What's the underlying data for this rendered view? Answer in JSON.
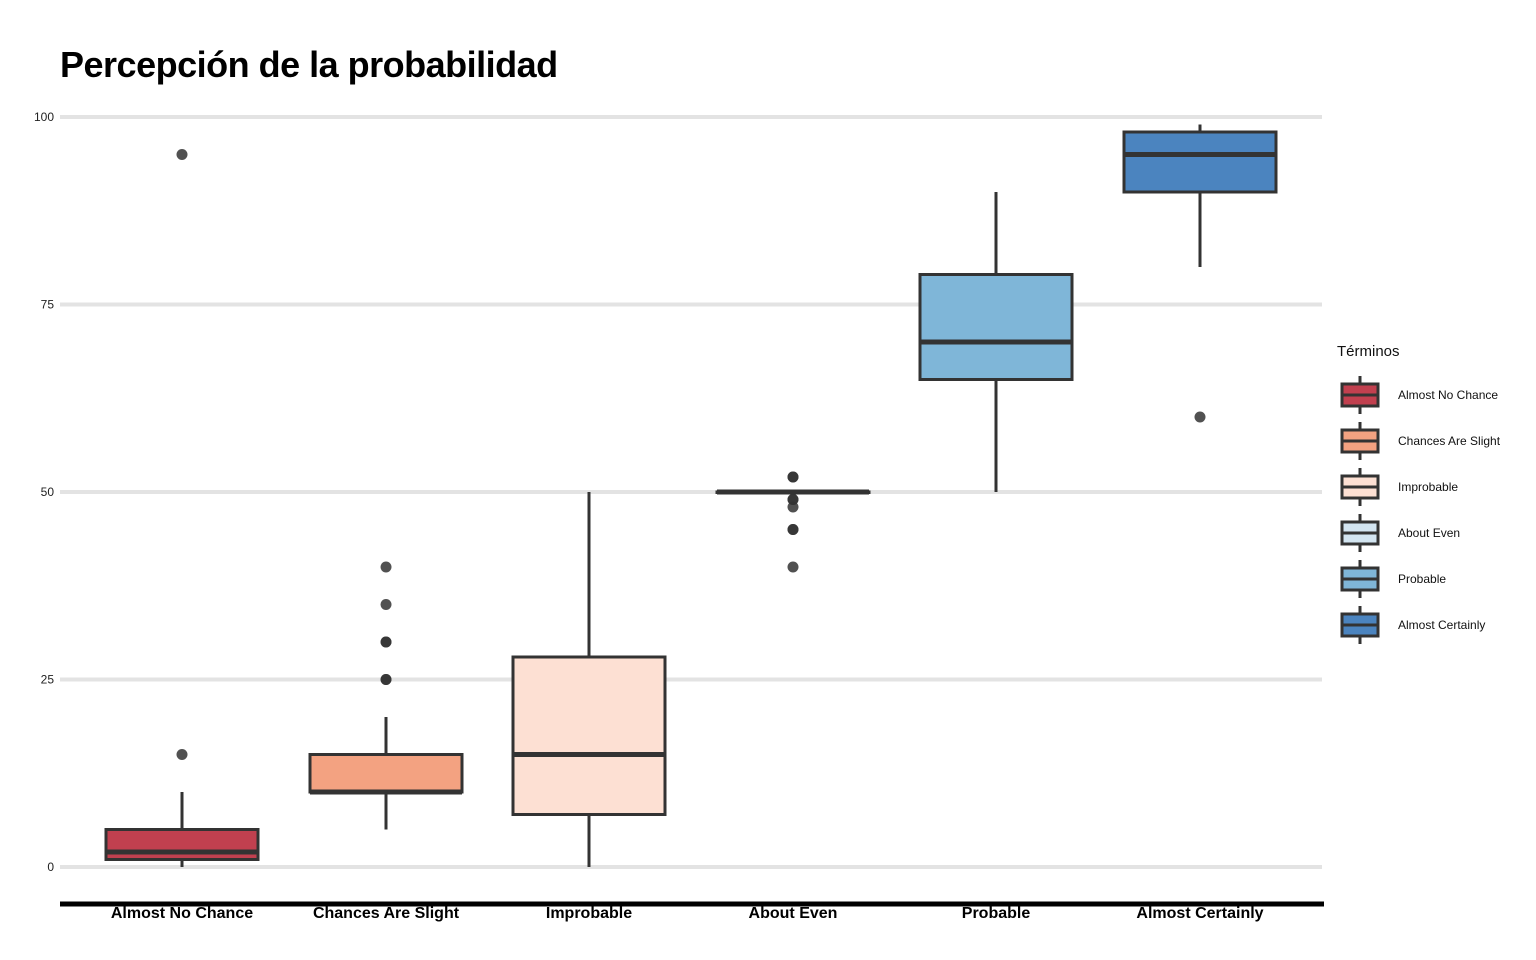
{
  "chart_data": {
    "type": "box",
    "title": "Percepción de la probabilidad",
    "xlabel": "",
    "ylabel": "",
    "ylim": [
      0,
      100
    ],
    "yticks": [
      0,
      25,
      50,
      75,
      100
    ],
    "grid": "horizontal",
    "legend_title": "Términos",
    "legend_position": "right",
    "categories": [
      "Almost No Chance",
      "Chances Are Slight",
      "Improbable",
      "About Even",
      "Probable",
      "Almost Certainly"
    ],
    "series": [
      {
        "name": "Almost No Chance",
        "color": "#c1404f",
        "whisker_low": 0,
        "q1": 1,
        "median": 2,
        "q3": 5,
        "whisker_high": 10,
        "outliers": [
          15,
          95
        ]
      },
      {
        "name": "Chances Are Slight",
        "color": "#f3a281",
        "whisker_low": 5,
        "q1": 10,
        "median": 10,
        "q3": 15,
        "whisker_high": 20,
        "outliers": [
          25,
          25,
          30,
          30,
          35,
          40
        ]
      },
      {
        "name": "Improbable",
        "color": "#fde0d3",
        "whisker_low": 0,
        "q1": 7,
        "median": 15,
        "q3": 28,
        "whisker_high": 50,
        "outliers": []
      },
      {
        "name": "About Even",
        "color": "#d3e5f1",
        "whisker_low": 50,
        "q1": 50,
        "median": 50,
        "q3": 50,
        "whisker_high": 50,
        "outliers": [
          40,
          45,
          45,
          48,
          49,
          49,
          52,
          52
        ]
      },
      {
        "name": "Probable",
        "color": "#7fb6d8",
        "whisker_low": 50,
        "q1": 65,
        "median": 70,
        "q3": 79,
        "whisker_high": 90,
        "outliers": []
      },
      {
        "name": "Almost Certainly",
        "color": "#4b84bf",
        "whisker_low": 80,
        "q1": 90,
        "median": 95,
        "q3": 98,
        "whisker_high": 99,
        "outliers": [
          60
        ]
      }
    ]
  }
}
